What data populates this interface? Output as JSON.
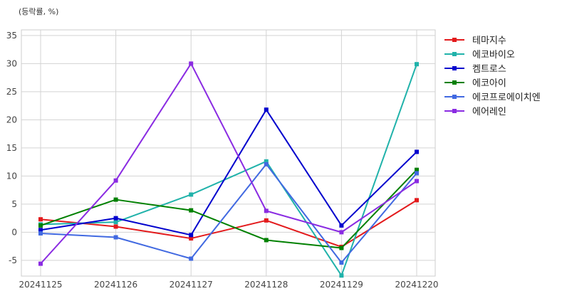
{
  "chart_data": {
    "type": "line",
    "ylabel": "(등락률, %)",
    "categories": [
      "20241125",
      "20241126",
      "20241127",
      "20241128",
      "20241129",
      "20241220"
    ],
    "yticks": [
      -5,
      0,
      5,
      10,
      15,
      20,
      25,
      30,
      35
    ],
    "ylim": [
      -7.8,
      36
    ],
    "grid": true,
    "legend_position": "right",
    "series": [
      {
        "name": "테마지수",
        "color": "#e31a1c",
        "values": [
          2.3,
          1.0,
          -1.1,
          2.1,
          -2.6,
          5.7
        ]
      },
      {
        "name": "에코바이오",
        "color": "#20b2aa",
        "values": [
          1.4,
          1.8,
          6.7,
          12.6,
          -7.7,
          29.9
        ]
      },
      {
        "name": "켐트로스",
        "color": "#0000cd",
        "values": [
          0.4,
          2.5,
          -0.5,
          21.8,
          1.2,
          14.3
        ]
      },
      {
        "name": "에코아이",
        "color": "#008000",
        "values": [
          1.2,
          5.8,
          3.9,
          -1.4,
          -2.8,
          11.1
        ]
      },
      {
        "name": "에코프로에이치엔",
        "color": "#4169e1",
        "values": [
          -0.2,
          -0.9,
          -4.7,
          12.1,
          -5.4,
          10.5
        ]
      },
      {
        "name": "에어레인",
        "color": "#8a2be2",
        "values": [
          -5.6,
          9.2,
          30.0,
          3.8,
          0.0,
          9.1
        ]
      }
    ]
  }
}
